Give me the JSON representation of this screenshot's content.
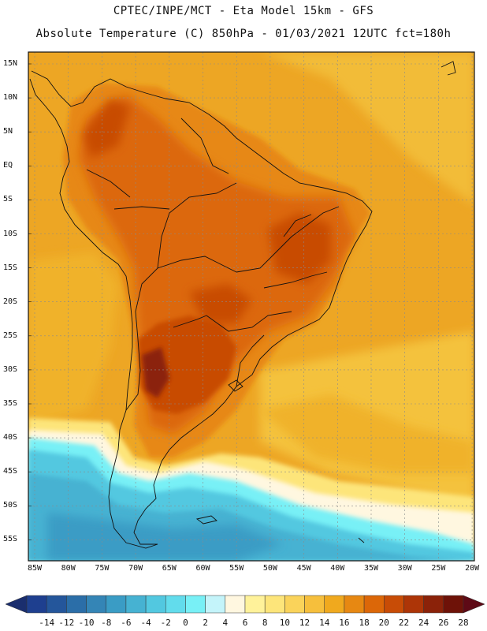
{
  "title_line1": "CPTEC/INPE/MCT -  Eta Model 15km - GFS",
  "title_line2": "Absolute Temperature (C) 850hPa - 01/03/2021 12UTC fct=180h",
  "lat_labels": [
    "15N",
    "10N",
    "5N",
    "EQ",
    "5S",
    "10S",
    "15S",
    "20S",
    "25S",
    "30S",
    "35S",
    "40S",
    "45S",
    "50S",
    "55S"
  ],
  "lon_labels": [
    "85W",
    "80W",
    "75W",
    "70W",
    "65W",
    "60W",
    "55W",
    "50W",
    "45W",
    "40W",
    "35W",
    "30W",
    "25W",
    "20W"
  ],
  "colorbar": {
    "labels": [
      "-14",
      "-12",
      "-10",
      "-8",
      "-6",
      "-4",
      "-2",
      "0",
      "2",
      "4",
      "6",
      "8",
      "10",
      "12",
      "14",
      "16",
      "18",
      "20",
      "22",
      "24",
      "26",
      "28"
    ],
    "colors": [
      "#1e3f8f",
      "#24569b",
      "#2b6ea8",
      "#3485b6",
      "#3a9cc5",
      "#46b2d2",
      "#52c8e0",
      "#62dcec",
      "#78f0f6",
      "#c4f4fa",
      "#fff7e0",
      "#fff29a",
      "#fde57a",
      "#fad35a",
      "#f6bf3c",
      "#f0a91e",
      "#e78812",
      "#dc6708",
      "#c84c06",
      "#ad3507",
      "#8b2209",
      "#6e1208"
    ],
    "under_color": "#1a2e6e",
    "over_color": "#5e0a16"
  },
  "colors": {
    "ocean_warm": "#eda624",
    "ocean_mild": "#f2bc38",
    "land_hot": "#dc6708",
    "land_very_hot": "#c84c06",
    "cold": "#52c8e0",
    "very_cold": "#3a9cc5"
  }
}
